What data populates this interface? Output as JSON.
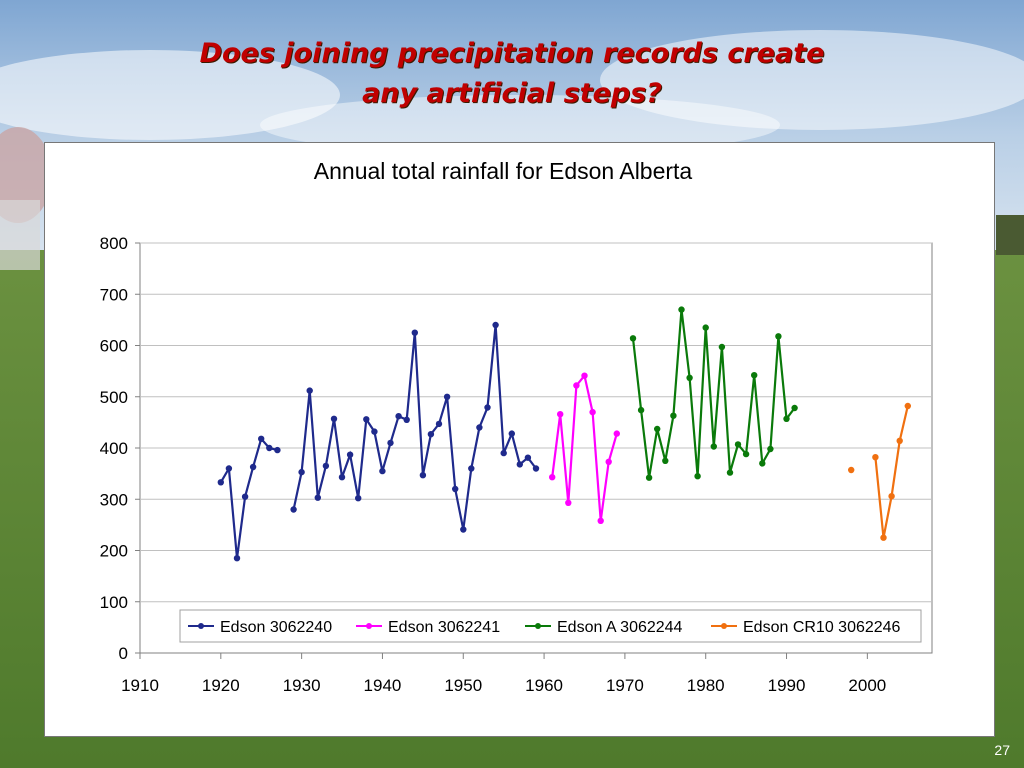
{
  "slide": {
    "title_line1": "Does joining precipitation records create",
    "title_line2": "any artificial steps?",
    "page_number": "27"
  },
  "colors": {
    "title": "#c00000",
    "sky_top": "#8fb2d8",
    "grass": "#5f8a35"
  },
  "chart_data": {
    "type": "line",
    "title": "Annual total rainfall for Edson Alberta",
    "xlabel": "",
    "ylabel": "",
    "xlim": [
      1910,
      2008
    ],
    "ylim": [
      0,
      800
    ],
    "x_ticks": [
      1910,
      1920,
      1930,
      1940,
      1950,
      1960,
      1970,
      1980,
      1990,
      2000
    ],
    "y_ticks": [
      0,
      100,
      200,
      300,
      400,
      500,
      600,
      700,
      800
    ],
    "grid": "horizontal",
    "legend_position": "bottom-inside",
    "series": [
      {
        "name": "Edson 3062240",
        "color": "#1f2a8c",
        "points": [
          [
            1920,
            333
          ],
          [
            1921,
            360
          ],
          [
            1922,
            185
          ],
          [
            1923,
            305
          ],
          [
            1924,
            363
          ],
          [
            1925,
            418
          ],
          [
            1926,
            400
          ],
          [
            1927,
            396
          ],
          null,
          [
            1929,
            280
          ],
          [
            1930,
            353
          ],
          [
            1931,
            512
          ],
          [
            1932,
            303
          ],
          [
            1933,
            365
          ],
          [
            1934,
            457
          ],
          [
            1935,
            343
          ],
          [
            1936,
            387
          ],
          [
            1937,
            302
          ],
          [
            1938,
            456
          ],
          [
            1939,
            432
          ],
          [
            1940,
            355
          ],
          [
            1941,
            410
          ],
          [
            1942,
            462
          ],
          [
            1943,
            455
          ],
          [
            1944,
            625
          ],
          [
            1945,
            347
          ],
          [
            1946,
            427
          ],
          [
            1947,
            447
          ],
          [
            1948,
            500
          ],
          [
            1949,
            320
          ],
          [
            1950,
            241
          ],
          [
            1951,
            360
          ],
          [
            1952,
            440
          ],
          [
            1953,
            479
          ],
          [
            1954,
            640
          ],
          [
            1955,
            390
          ],
          [
            1956,
            428
          ],
          [
            1957,
            368
          ],
          [
            1958,
            381
          ],
          [
            1959,
            360
          ]
        ]
      },
      {
        "name": "Edson 3062241",
        "color": "#ff00ff",
        "points": [
          [
            1961,
            343
          ],
          [
            1962,
            466
          ],
          [
            1963,
            293
          ],
          [
            1964,
            522
          ],
          [
            1965,
            541
          ],
          [
            1966,
            470
          ],
          [
            1967,
            258
          ],
          [
            1968,
            373
          ],
          [
            1969,
            428
          ]
        ]
      },
      {
        "name": "Edson A 3062244",
        "color": "#0a7a0a",
        "points": [
          [
            1971,
            614
          ],
          [
            1972,
            474
          ],
          [
            1973,
            342
          ],
          [
            1974,
            437
          ],
          [
            1975,
            375
          ],
          [
            1976,
            463
          ],
          [
            1977,
            670
          ],
          [
            1978,
            537
          ],
          [
            1979,
            345
          ],
          [
            1980,
            635
          ],
          [
            1981,
            403
          ],
          [
            1982,
            597
          ],
          [
            1983,
            352
          ],
          [
            1984,
            407
          ],
          [
            1985,
            388
          ],
          [
            1986,
            542
          ],
          [
            1987,
            370
          ],
          [
            1988,
            398
          ],
          [
            1989,
            618
          ],
          [
            1990,
            457
          ],
          [
            1991,
            478
          ]
        ]
      },
      {
        "name": "Edson CR10 3062246",
        "color": "#f07010",
        "points": [
          [
            1998,
            357
          ],
          null,
          [
            2001,
            382
          ],
          [
            2002,
            225
          ],
          [
            2003,
            306
          ],
          [
            2004,
            414
          ],
          [
            2005,
            482
          ]
        ]
      }
    ]
  }
}
